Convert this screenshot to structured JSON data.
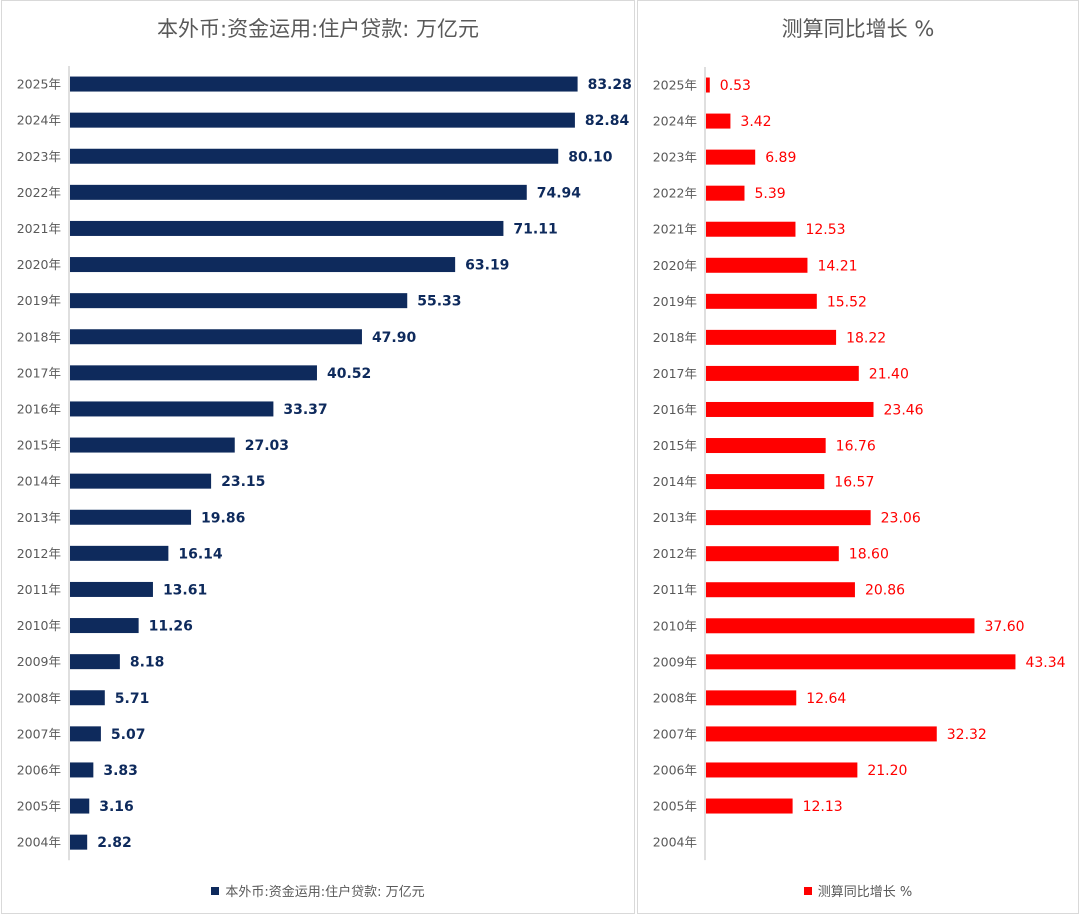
{
  "chart_data": [
    {
      "type": "bar",
      "orientation": "horizontal",
      "title": "本外币:资金运用:住户贷款: 万亿元",
      "legend": "本外币:资金运用:住户贷款: 万亿元",
      "color": "#0e2a5c",
      "categories": [
        "2025年",
        "2024年",
        "2023年",
        "2022年",
        "2021年",
        "2020年",
        "2019年",
        "2018年",
        "2017年",
        "2016年",
        "2015年",
        "2014年",
        "2013年",
        "2012年",
        "2011年",
        "2010年",
        "2009年",
        "2008年",
        "2007年",
        "2006年",
        "2005年",
        "2004年"
      ],
      "values": [
        83.28,
        82.84,
        80.1,
        74.94,
        71.11,
        63.19,
        55.33,
        47.9,
        40.52,
        33.37,
        27.03,
        23.15,
        19.86,
        16.14,
        13.61,
        11.26,
        8.18,
        5.71,
        5.07,
        3.83,
        3.16,
        2.82
      ],
      "labels": [
        "83.28",
        "82.84",
        "80.10",
        "74.94",
        "71.11",
        "63.19",
        "55.33",
        "47.90",
        "40.52",
        "33.37",
        "27.03",
        "23.15",
        "19.86",
        "16.14",
        "13.61",
        "11.26",
        "8.18",
        "5.71",
        "5.07",
        "3.83",
        "3.16",
        "2.82"
      ],
      "xlim": [
        0,
        100
      ],
      "legend_position": "bottom"
    },
    {
      "type": "bar",
      "orientation": "horizontal",
      "title": "测算同比增长 %",
      "legend": "测算同比增长 %",
      "color": "#ff0000",
      "categories": [
        "2025年",
        "2024年",
        "2023年",
        "2022年",
        "2021年",
        "2020年",
        "2019年",
        "2018年",
        "2017年",
        "2016年",
        "2015年",
        "2014年",
        "2013年",
        "2012年",
        "2011年",
        "2010年",
        "2009年",
        "2008年",
        "2007年",
        "2006年",
        "2005年",
        "2004年"
      ],
      "values": [
        0.53,
        3.42,
        6.89,
        5.39,
        12.53,
        14.21,
        15.52,
        18.22,
        21.4,
        23.46,
        16.76,
        16.57,
        23.06,
        18.6,
        20.86,
        37.6,
        43.34,
        12.64,
        32.32,
        21.2,
        12.13,
        null
      ],
      "labels": [
        "0.53",
        "3.42",
        "6.89",
        "5.39",
        "12.53",
        "14.21",
        "15.52",
        "18.22",
        "21.40",
        "23.46",
        "16.76",
        "16.57",
        "23.06",
        "18.60",
        "20.86",
        "37.60",
        "43.34",
        "12.64",
        "32.32",
        "21.20",
        "12.13",
        ""
      ],
      "xlim": [
        0,
        50
      ],
      "legend_position": "bottom"
    }
  ]
}
